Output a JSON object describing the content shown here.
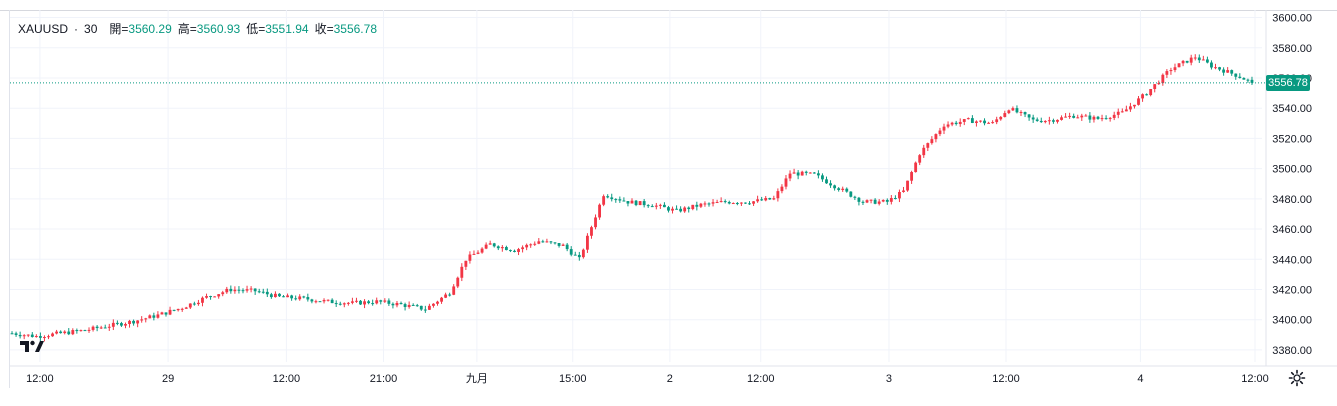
{
  "legend": {
    "symbol": "XAUUSD",
    "interval_sep": "·",
    "interval": "30",
    "open_label": "開=",
    "open": "3560.29",
    "high_label": "高=",
    "high": "3560.93",
    "low_label": "低=",
    "low": "3551.94",
    "close_label": "收=",
    "close": "3556.78"
  },
  "last_price_tag": "3556.78",
  "colors": {
    "up": "#f23645",
    "down": "#089981",
    "grid": "#f0f3fa",
    "axis_text": "#131722",
    "last_line": "#089981"
  },
  "icons": {
    "logo": "tradingview-logo-icon",
    "settings": "gear-icon"
  },
  "chart_data": {
    "type": "candlestick",
    "title": "",
    "ylim": [
      3372,
      3605
    ],
    "y_ticks": [
      "3600.00",
      "3580.00",
      "3560.00",
      "3540.00",
      "3520.00",
      "3500.00",
      "3480.00",
      "3460.00",
      "3440.00",
      "3420.00",
      "3400.00",
      "3380.00"
    ],
    "x_ticks": [
      "12:00",
      "29",
      "12:00",
      "21:00",
      "九月",
      "15:00",
      "2",
      "12:00",
      "3",
      "12:00",
      "4",
      "12:00"
    ],
    "close_path": [
      [
        0,
        3391
      ],
      [
        6,
        3389
      ],
      [
        12,
        3391
      ],
      [
        18,
        3393
      ],
      [
        24,
        3396
      ],
      [
        30,
        3399
      ],
      [
        36,
        3403
      ],
      [
        42,
        3408
      ],
      [
        48,
        3415
      ],
      [
        54,
        3420
      ],
      [
        60,
        3419
      ],
      [
        66,
        3415
      ],
      [
        72,
        3414
      ],
      [
        78,
        3412
      ],
      [
        84,
        3411
      ],
      [
        90,
        3412
      ],
      [
        96,
        3410
      ],
      [
        102,
        3407
      ],
      [
        108,
        3418
      ],
      [
        112,
        3440
      ],
      [
        118,
        3450
      ],
      [
        124,
        3446
      ],
      [
        130,
        3452
      ],
      [
        136,
        3449
      ],
      [
        140,
        3440
      ],
      [
        146,
        3483
      ],
      [
        152,
        3478
      ],
      [
        158,
        3476
      ],
      [
        164,
        3472
      ],
      [
        170,
        3476
      ],
      [
        176,
        3478
      ],
      [
        182,
        3478
      ],
      [
        188,
        3480
      ],
      [
        192,
        3497
      ],
      [
        198,
        3496
      ],
      [
        204,
        3487
      ],
      [
        210,
        3478
      ],
      [
        216,
        3478
      ],
      [
        220,
        3485
      ],
      [
        224,
        3510
      ],
      [
        230,
        3529
      ],
      [
        236,
        3532
      ],
      [
        242,
        3530
      ],
      [
        246,
        3540
      ],
      [
        252,
        3532
      ],
      [
        256,
        3532
      ],
      [
        262,
        3535
      ],
      [
        268,
        3533
      ],
      [
        274,
        3537
      ],
      [
        280,
        3550
      ],
      [
        286,
        3566
      ],
      [
        292,
        3574
      ],
      [
        296,
        3568
      ],
      [
        302,
        3562
      ],
      [
        306,
        3557
      ]
    ],
    "n_bars": 307,
    "last_close": 3556.78
  }
}
